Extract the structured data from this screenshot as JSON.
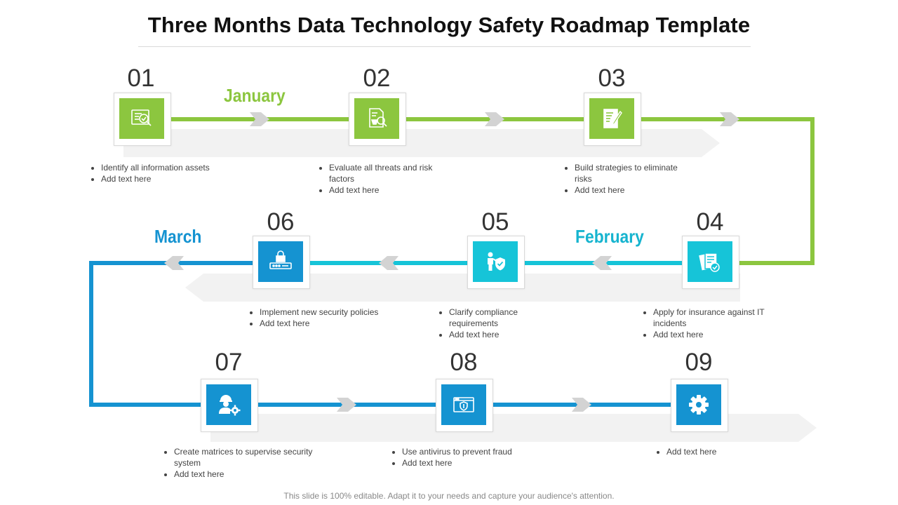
{
  "title": "Three Months Data Technology Safety Roadmap Template",
  "months": {
    "january": "January",
    "february": "February",
    "march": "March"
  },
  "steps": [
    {
      "number": "01",
      "icon": "document-search-icon",
      "bullets": [
        "Identify all information assets",
        "Add text here"
      ]
    },
    {
      "number": "02",
      "icon": "research-report-icon",
      "bullets": [
        "Evaluate all threats and risk factors",
        "Add text here"
      ]
    },
    {
      "number": "03",
      "icon": "write-document-icon",
      "bullets": [
        "Build strategies to eliminate risks",
        "Add text here"
      ]
    },
    {
      "number": "04",
      "icon": "insurance-documents-icon",
      "bullets": [
        "Apply for insurance against IT incidents",
        "Add text here"
      ]
    },
    {
      "number": "05",
      "icon": "person-shield-icon",
      "bullets": [
        "Clarify compliance requirements",
        "Add text here"
      ]
    },
    {
      "number": "06",
      "icon": "padlock-password-icon",
      "bullets": [
        "Implement new security policies",
        "Add text here"
      ]
    },
    {
      "number": "07",
      "icon": "engineer-gear-icon",
      "bullets": [
        "Create matrices to supervise security system",
        "Add text here"
      ]
    },
    {
      "number": "08",
      "icon": "browser-shield-icon",
      "bullets": [
        "Use antivirus to prevent fraud",
        "Add text here"
      ]
    },
    {
      "number": "09",
      "icon": "gear-icon",
      "bullets": [
        "Add text here"
      ]
    }
  ],
  "colors": {
    "green": "#8cc63f",
    "cyan": "#16c4d8",
    "blue": "#1593d1",
    "arrow_gray": "#d3d3d3",
    "band_gray": "#f2f2f2"
  },
  "footer": "This slide is 100% editable. Adapt it to your needs and capture your audience's attention."
}
